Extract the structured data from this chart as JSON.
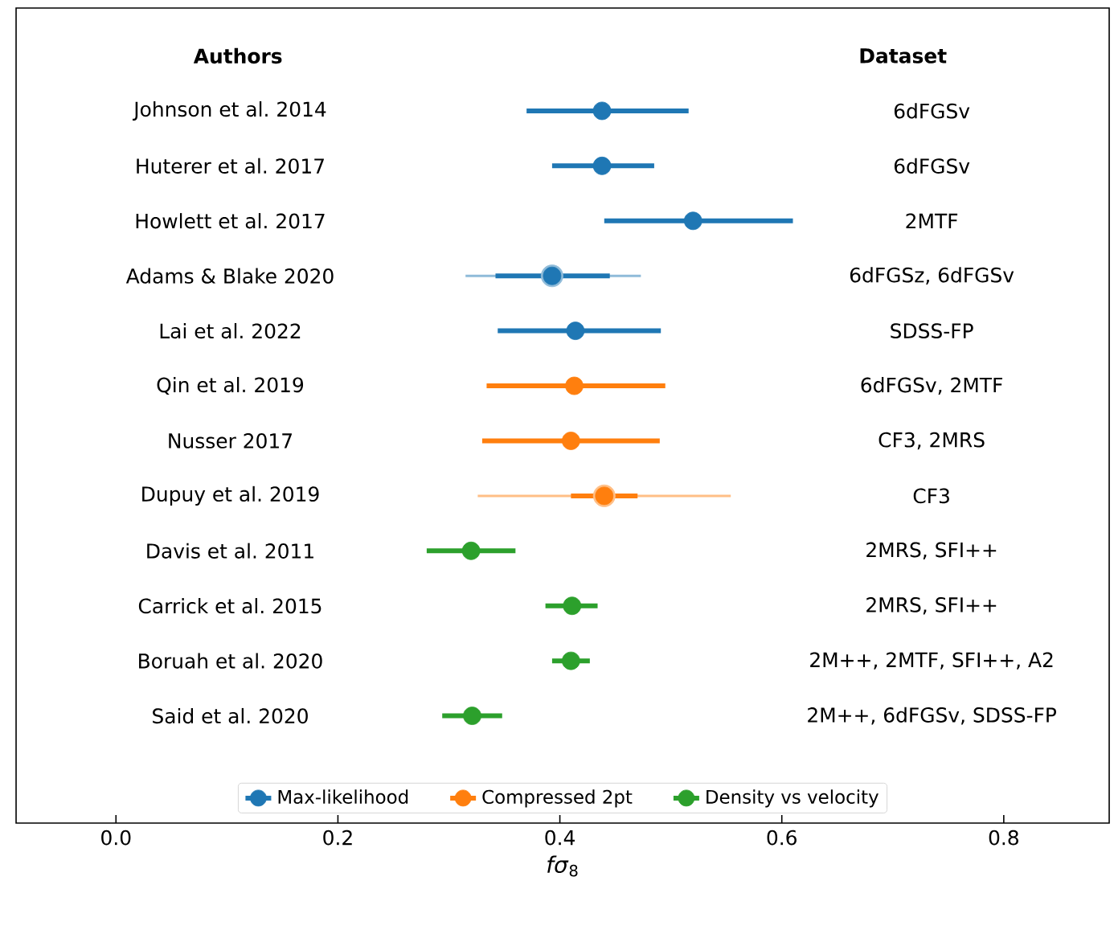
{
  "chart_data": {
    "type": "scatter",
    "orientation": "horizontal",
    "categories": [
      "Johnson et al. 2014",
      "Huterer et al. 2017",
      "Howlett et al. 2017",
      "Adams & Blake 2020",
      "Lai et al. 2022",
      "Qin et al. 2019",
      "Nusser 2017",
      "Dupuy et al. 2019",
      "Davis et al. 2011",
      "Carrick et al. 2015",
      "Boruah et al. 2020",
      "Said et al. 2020"
    ],
    "y2_categories": [
      "6dFGSv",
      "6dFGSv",
      "2MTF",
      "6dFGSz, 6dFGSv",
      "SDSS-FP",
      "6dFGSv, 2MTF",
      "CF3, 2MRS",
      "CF3",
      "2MRS, SFI++",
      "2MRS, SFI++",
      "2M++, 2MTF, SFI++, A2",
      "2M++, 6dFGSv, SDSS-FP"
    ],
    "annotations": [
      "Authors",
      "Dataset"
    ],
    "xlabel": "*fσ*$_{8}$",
    "xlim": [
      -0.09,
      0.895
    ],
    "xticks": [
      {
        "value": 0,
        "label": "0.0"
      },
      {
        "value": 0.2,
        "label": "0.2"
      },
      {
        "value": 0.4,
        "label": "0.4"
      },
      {
        "value": 0.6,
        "label": "0.6"
      },
      {
        "value": 0.8,
        "label": "0.8"
      }
    ],
    "legend": "bottom",
    "marker": "circle",
    "series": [
      {
        "color": "#8fbbd9",
        "values": [
          null,
          null,
          null,
          0.393,
          null,
          null,
          null,
          null,
          null,
          null,
          null,
          null
        ],
        "errors": [
          null,
          null,
          null,
          [
            0.315,
            0.473
          ],
          null,
          null,
          null,
          null,
          null,
          null,
          null,
          null
        ]
      },
      {
        "color": "#ffbf86",
        "values": [
          null,
          null,
          null,
          null,
          null,
          null,
          null,
          0.44,
          null,
          null,
          null,
          null
        ],
        "errors": [
          null,
          null,
          null,
          null,
          null,
          null,
          null,
          [
            0.326,
            0.554
          ],
          null,
          null,
          null,
          null
        ]
      },
      {
        "name": "Max-likelihood",
        "color": "#1f77b4",
        "values": [
          0.438,
          0.438,
          0.52,
          0.393,
          0.414,
          null,
          null,
          null,
          null,
          null,
          null,
          null
        ],
        "errors": [
          [
            0.37,
            0.516
          ],
          [
            0.393,
            0.485
          ],
          [
            0.44,
            0.61
          ],
          [
            0.342,
            0.445
          ],
          [
            0.344,
            0.491
          ],
          null,
          null,
          null,
          null,
          null,
          null,
          null
        ]
      },
      {
        "name": "Compressed 2pt",
        "color": "#ff7f0e",
        "values": [
          null,
          null,
          null,
          null,
          null,
          0.413,
          0.41,
          0.44,
          null,
          null,
          null,
          null
        ],
        "errors": [
          null,
          null,
          null,
          null,
          null,
          [
            0.334,
            0.495
          ],
          [
            0.33,
            0.49
          ],
          [
            0.41,
            0.47
          ],
          null,
          null,
          null,
          null
        ]
      },
      {
        "name": "Density vs velocity",
        "color": "#2ca02c",
        "values": [
          null,
          null,
          null,
          null,
          null,
          null,
          null,
          null,
          0.32,
          0.411,
          0.41,
          0.321
        ],
        "errors": [
          null,
          null,
          null,
          null,
          null,
          null,
          null,
          null,
          [
            0.28,
            0.36
          ],
          [
            0.387,
            0.434
          ],
          [
            0.393,
            0.427
          ],
          [
            0.294,
            0.348
          ]
        ]
      }
    ]
  }
}
